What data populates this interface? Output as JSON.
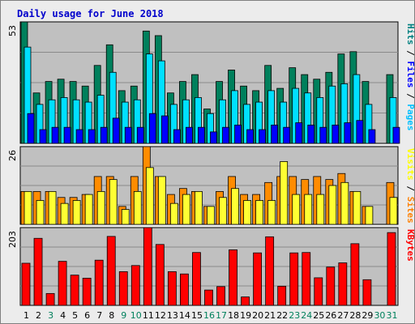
{
  "chart_data": {
    "type": "bar",
    "title": "Daily usage for June 2018",
    "x": [
      "1",
      "2",
      "3",
      "4",
      "5",
      "6",
      "7",
      "8",
      "9",
      "10",
      "11",
      "12",
      "13",
      "14",
      "15",
      "16",
      "17",
      "18",
      "19",
      "20",
      "21",
      "22",
      "23",
      "24",
      "25",
      "26",
      "27",
      "28",
      "29",
      "30",
      "31"
    ],
    "weekend_days": [
      "3",
      "9",
      "10",
      "16",
      "17",
      "23",
      "24",
      "30",
      "31"
    ],
    "panels": [
      {
        "id": "top",
        "max_label": "53",
        "ylim": [
          0,
          53
        ],
        "legend": [
          "Pages",
          "Files",
          "Hits"
        ],
        "legend_colors": [
          "#00c0ff",
          "#0000ff",
          "#008080"
        ],
        "series": [
          {
            "name": "Hits",
            "color": "#00805c",
            "values": [
              53,
              22,
              27,
              28,
              27,
              25,
              34,
              43,
              23,
              25,
              49,
              47,
              22,
              27,
              30,
              15,
              27,
              32,
              25,
              23,
              34,
              24,
              33,
              30,
              28,
              31,
              39,
              40,
              27,
              0,
              30
            ]
          },
          {
            "name": "Files",
            "color": "#00e0ff",
            "values": [
              42,
              17,
              19,
              20,
              19,
              18,
              21,
              31,
              18,
              19,
              39,
              36,
              17,
              19,
              20,
              13,
              19,
              23,
              17,
              18,
              23,
              18,
              24,
              22,
              20,
              25,
              26,
              30,
              17,
              0,
              20
            ]
          },
          {
            "name": "Pages",
            "color": "#0000ff",
            "values": [
              13,
              6,
              7,
              7,
              6,
              6,
              7,
              11,
              7,
              7,
              13,
              12,
              6,
              7,
              7,
              5,
              7,
              8,
              6,
              6,
              8,
              7,
              9,
              8,
              7,
              8,
              9,
              10,
              6,
              0,
              7
            ]
          }
        ]
      },
      {
        "id": "mid",
        "max_label": "26",
        "ylim": [
          0,
          26
        ],
        "legend": [
          "Sites",
          "Visits"
        ],
        "legend_colors": [
          "#ff8000",
          "#ffff00"
        ],
        "series": [
          {
            "name": "Visits",
            "color": "#ff8c00",
            "values": [
              11,
              11,
              11,
              9,
              9,
              10,
              16,
              16,
              6,
              16,
              26,
              16,
              10,
              12,
              11,
              6,
              11,
              16,
              10,
              10,
              14,
              16,
              16,
              15,
              16,
              15,
              17,
              11,
              6,
              0,
              14
            ]
          },
          {
            "name": "Sites",
            "color": "#ffff33",
            "values": [
              11,
              8,
              11,
              7,
              8,
              10,
              11,
              15,
              5,
              11,
              19,
              16,
              7,
              10,
              11,
              6,
              9,
              12,
              8,
              8,
              8,
              21,
              10,
              10,
              10,
              13,
              14,
              11,
              6,
              0,
              9
            ]
          }
        ]
      },
      {
        "id": "bot",
        "max_label": "203",
        "ylim": [
          0,
          203
        ],
        "legend": [
          "KBytes"
        ],
        "legend_colors": [
          "#ff0000"
        ],
        "series": [
          {
            "name": "KBytes",
            "color": "#ff0000",
            "values": [
              110,
              175,
              31,
              115,
              79,
              71,
              118,
              180,
              88,
              104,
              203,
              159,
              88,
              82,
              138,
              40,
              49,
              145,
              22,
              137,
              179,
              50,
              137,
              138,
              72,
              100,
              111,
              161,
              67,
              0,
              190
            ]
          }
        ]
      }
    ]
  }
}
